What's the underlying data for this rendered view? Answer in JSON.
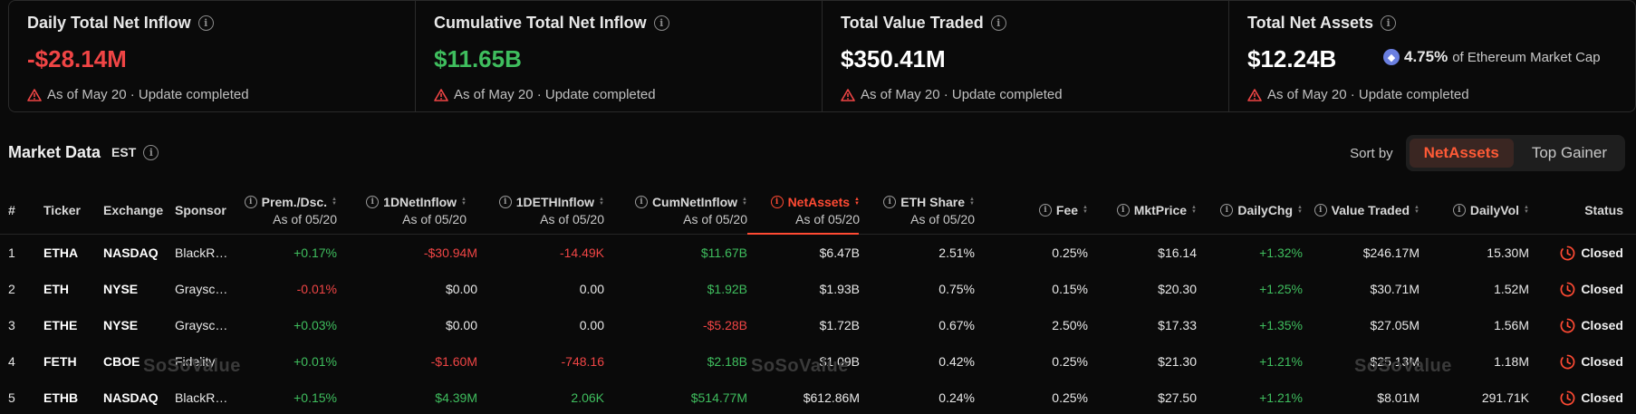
{
  "stats": [
    {
      "title": "Daily Total Net Inflow",
      "value": "-$28.14M",
      "value_color": "red",
      "footer": "As of May 20 · Update completed"
    },
    {
      "title": "Cumulative Total Net Inflow",
      "value": "$11.65B",
      "value_color": "green",
      "footer": "As of May 20 · Update completed"
    },
    {
      "title": "Total Value Traded",
      "value": "$350.41M",
      "value_color": "white",
      "footer": "As of May 20 · Update completed"
    },
    {
      "title": "Total Net Assets",
      "value": "$12.24B",
      "value_color": "white",
      "sub_pct": "4.75%",
      "sub_desc": "of Ethereum Market Cap",
      "footer": "As of May 20 · Update completed"
    }
  ],
  "market": {
    "title": "Market Data",
    "timezone": "EST",
    "sort_label": "Sort by",
    "sort_options": [
      "NetAssets",
      "Top Gainer"
    ],
    "sort_active": "NetAssets"
  },
  "columns": {
    "num": "#",
    "ticker": "Ticker",
    "exchange": "Exchange",
    "sponsor": "Sponsor",
    "prem": "Prem./Dsc.",
    "prem_sub": "As of 05/20",
    "d1inflow": "1DNetInflow",
    "d1inflow_sub": "As of 05/20",
    "d1eth": "1DETHInflow",
    "d1eth_sub": "As of 05/20",
    "cum": "CumNetInflow",
    "cum_sub": "As of 05/20",
    "netassets": "NetAssets",
    "netassets_sub": "As of 05/20",
    "ethshare": "ETH Share",
    "ethshare_sub": "As of 05/20",
    "fee": "Fee",
    "mktprice": "MktPrice",
    "dailychg": "DailyChg",
    "valuetraded": "Value Traded",
    "dailyvol": "DailyVol",
    "status": "Status"
  },
  "rows": [
    {
      "num": "1",
      "ticker": "ETHA",
      "exchange": "NASDAQ",
      "sponsor": "BlackR…",
      "prem": "+0.17%",
      "d1inflow": "-$30.94M",
      "d1eth": "-14.49K",
      "cum": "$11.67B",
      "netassets": "$6.47B",
      "ethshare": "2.51%",
      "fee": "0.25%",
      "mktprice": "$16.14",
      "dailychg": "+1.32%",
      "valuetraded": "$246.17M",
      "dailyvol": "15.30M",
      "status": "Closed"
    },
    {
      "num": "2",
      "ticker": "ETH",
      "exchange": "NYSE",
      "sponsor": "Graysc…",
      "prem": "-0.01%",
      "d1inflow": "$0.00",
      "d1eth": "0.00",
      "cum": "$1.92B",
      "netassets": "$1.93B",
      "ethshare": "0.75%",
      "fee": "0.15%",
      "mktprice": "$20.30",
      "dailychg": "+1.25%",
      "valuetraded": "$30.71M",
      "dailyvol": "1.52M",
      "status": "Closed"
    },
    {
      "num": "3",
      "ticker": "ETHE",
      "exchange": "NYSE",
      "sponsor": "Graysc…",
      "prem": "+0.03%",
      "d1inflow": "$0.00",
      "d1eth": "0.00",
      "cum": "-$5.28B",
      "netassets": "$1.72B",
      "ethshare": "0.67%",
      "fee": "2.50%",
      "mktprice": "$17.33",
      "dailychg": "+1.35%",
      "valuetraded": "$27.05M",
      "dailyvol": "1.56M",
      "status": "Closed"
    },
    {
      "num": "4",
      "ticker": "FETH",
      "exchange": "CBOE",
      "sponsor": "Fidelity",
      "prem": "+0.01%",
      "d1inflow": "-$1.60M",
      "d1eth": "-748.16",
      "cum": "$2.18B",
      "netassets": "$1.09B",
      "ethshare": "0.42%",
      "fee": "0.25%",
      "mktprice": "$21.30",
      "dailychg": "+1.21%",
      "valuetraded": "$25.13M",
      "dailyvol": "1.18M",
      "status": "Closed"
    },
    {
      "num": "5",
      "ticker": "ETHB",
      "exchange": "NASDAQ",
      "sponsor": "BlackR…",
      "prem": "+0.15%",
      "d1inflow": "$4.39M",
      "d1eth": "2.06K",
      "cum": "$514.77M",
      "netassets": "$612.86M",
      "ethshare": "0.24%",
      "fee": "0.25%",
      "mktprice": "$27.50",
      "dailychg": "+1.21%",
      "valuetraded": "$8.01M",
      "dailyvol": "291.71K",
      "status": "Closed"
    }
  ],
  "watermark": "SoSoValue",
  "colors": {
    "red": "#f04545",
    "green": "#3fbe5e",
    "accent": "#ff4a33"
  }
}
